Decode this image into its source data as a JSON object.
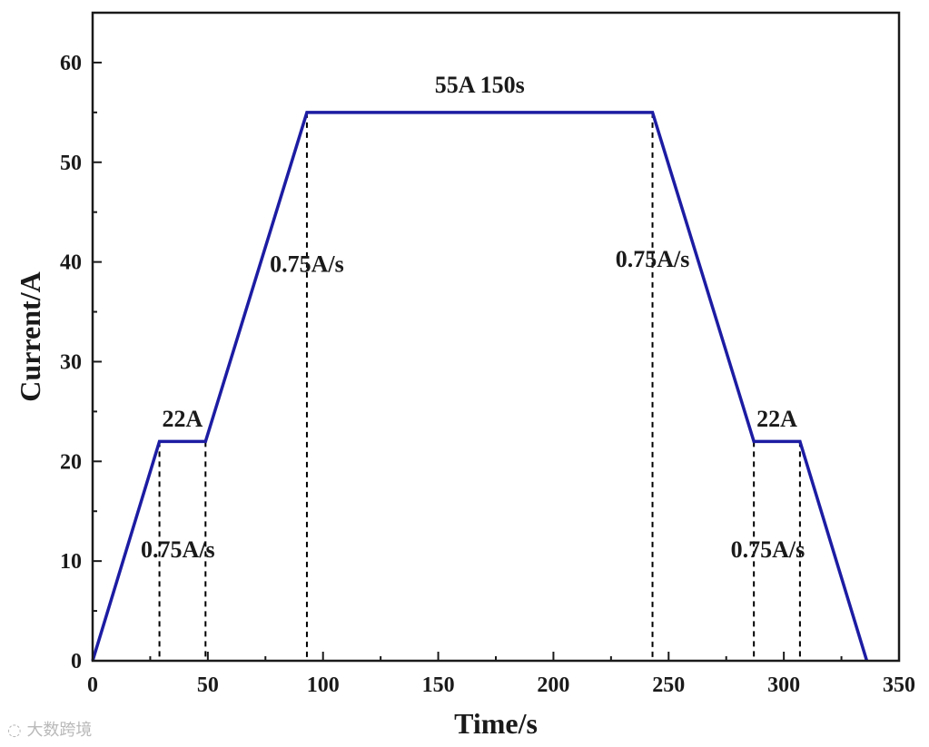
{
  "chart_data": {
    "type": "line",
    "xlabel": "Time/s",
    "ylabel": "Current/A",
    "xlim": [
      0,
      350
    ],
    "ylim": [
      0,
      65
    ],
    "x_ticks": [
      0,
      50,
      100,
      150,
      200,
      250,
      300,
      350
    ],
    "y_ticks": [
      0,
      10,
      20,
      30,
      40,
      50,
      60
    ],
    "grid": false,
    "colors": {
      "line": "#1c1ca3",
      "dashed": "#000000",
      "axis": "#1a1a1a"
    },
    "series": [
      {
        "x": [
          0,
          29,
          49,
          93,
          243,
          287,
          307,
          336
        ],
        "y": [
          0,
          22,
          22,
          55,
          55,
          22,
          22,
          0
        ]
      }
    ],
    "dashed_verticals": [
      {
        "x": 29,
        "y": 22
      },
      {
        "x": 49,
        "y": 22
      },
      {
        "x": 93,
        "y": 55
      },
      {
        "x": 243,
        "y": 55
      },
      {
        "x": 287,
        "y": 22
      },
      {
        "x": 307,
        "y": 22
      }
    ],
    "annotations": [
      {
        "text": "55A 150s",
        "x": 168,
        "y": 57
      },
      {
        "text": "0.75A/s",
        "x": 93,
        "y": 39
      },
      {
        "text": "0.75A/s",
        "x": 243,
        "y": 39.5
      },
      {
        "text": "22A",
        "x": 39,
        "y": 23.5
      },
      {
        "text": "22A",
        "x": 297,
        "y": 23.5
      },
      {
        "text": "0.75A/s",
        "x": 37,
        "y": 10.4
      },
      {
        "text": "0.75A/s",
        "x": 293,
        "y": 10.4
      }
    ]
  },
  "watermark": "大数跨境"
}
